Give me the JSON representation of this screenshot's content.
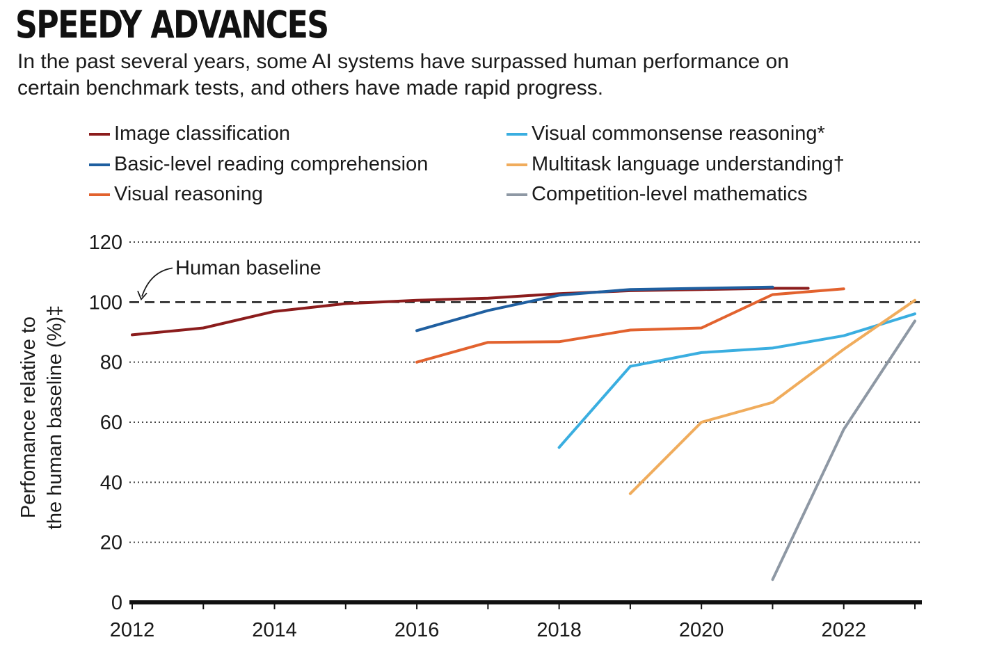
{
  "header": {
    "title": "SPEEDY ADVANCES",
    "subtitle": "In the past several years, some AI systems have surpassed human performance on certain benchmark tests, and others have made rapid progress."
  },
  "chart_data": {
    "type": "line",
    "ylabel_line1": "Perfomance relative to",
    "ylabel_line2": "the human baseline (%)‡",
    "xlabel": "",
    "ylim": [
      0,
      120
    ],
    "xlim": [
      2012,
      2023
    ],
    "yticks": [
      0,
      20,
      40,
      60,
      80,
      100,
      120
    ],
    "xticks": [
      2012,
      2014,
      2016,
      2018,
      2020,
      2022
    ],
    "grid": "horizontal dotted",
    "legend_position": "top",
    "baseline": {
      "value": 100,
      "label": "Human baseline"
    },
    "series": [
      {
        "name": "Image classification",
        "color": "#8b1c1c",
        "x": [
          2012,
          2013,
          2014,
          2015,
          2016,
          2017,
          2018,
          2019,
          2020,
          2021,
          2021.5
        ],
        "y": [
          89.1,
          91.4,
          96.9,
          99.5,
          100.6,
          101.3,
          102.8,
          103.8,
          104.2,
          104.6,
          104.6
        ]
      },
      {
        "name": "Basic-level reading comprehension",
        "color": "#1f5fa0",
        "x": [
          2016,
          2017,
          2018,
          2019,
          2020,
          2021
        ],
        "y": [
          90.5,
          97.2,
          102.3,
          104.2,
          104.6,
          105.0
        ]
      },
      {
        "name": "Visual reasoning",
        "color": "#e2622e",
        "x": [
          2016,
          2017,
          2018,
          2019,
          2020,
          2021,
          2022
        ],
        "y": [
          80.0,
          86.6,
          86.8,
          90.7,
          91.4,
          102.5,
          104.4
        ]
      },
      {
        "name": "Visual commonsense reasoning*",
        "color": "#3aaee0",
        "x": [
          2018,
          2019,
          2020,
          2021,
          2022,
          2023
        ],
        "y": [
          51.6,
          78.6,
          83.2,
          84.7,
          88.8,
          96.1
        ]
      },
      {
        "name": "Multitask language understanding†",
        "color": "#f0ac5c",
        "x": [
          2019,
          2020,
          2021,
          2022,
          2023
        ],
        "y": [
          36.2,
          60.0,
          66.6,
          84.3,
          100.6
        ]
      },
      {
        "name": "Competition-level mathematics",
        "color": "#8e98a4",
        "x": [
          2021,
          2022,
          2023
        ],
        "y": [
          7.6,
          57.6,
          93.7
        ]
      }
    ]
  }
}
